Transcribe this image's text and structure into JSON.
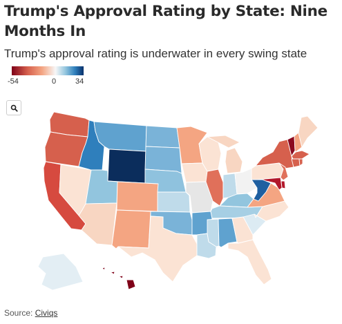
{
  "header": {
    "title": "Trump's Approval Rating by State: Nine Months In",
    "subtitle": "Trump's approval rating is underwater in every swing state"
  },
  "legend": {
    "min_label": "-54",
    "mid_label": "0",
    "max_label": "34",
    "min_color": "#7f0118",
    "mid_color": "#f7f7f7",
    "max_color": "#08306b"
  },
  "zoom": {
    "icon": "magnifier-icon"
  },
  "map": {
    "states": [
      {
        "abbr": "WA",
        "color": "#d6604d"
      },
      {
        "abbr": "OR",
        "color": "#d6604d"
      },
      {
        "abbr": "CA",
        "color": "#d64a3f"
      },
      {
        "abbr": "NV",
        "color": "#fbe3d4"
      },
      {
        "abbr": "ID",
        "color": "#2f7fbc"
      },
      {
        "abbr": "MT",
        "color": "#5fa2cf"
      },
      {
        "abbr": "WY",
        "color": "#0b2d5c"
      },
      {
        "abbr": "UT",
        "color": "#92c5de"
      },
      {
        "abbr": "AZ",
        "color": "#f8d6c2"
      },
      {
        "abbr": "CO",
        "color": "#f4a582"
      },
      {
        "abbr": "NM",
        "color": "#f4a582"
      },
      {
        "abbr": "ND",
        "color": "#7ab3d8"
      },
      {
        "abbr": "SD",
        "color": "#7ab3d8"
      },
      {
        "abbr": "NE",
        "color": "#8fc2de"
      },
      {
        "abbr": "KS",
        "color": "#bfdbea"
      },
      {
        "abbr": "OK",
        "color": "#7ab3d8"
      },
      {
        "abbr": "TX",
        "color": "#fbe3d4"
      },
      {
        "abbr": "MN",
        "color": "#f4a582"
      },
      {
        "abbr": "IA",
        "color": "#fbe3d4"
      },
      {
        "abbr": "MO",
        "color": "#e6e6e6"
      },
      {
        "abbr": "AR",
        "color": "#5fa2cf"
      },
      {
        "abbr": "LA",
        "color": "#bfdbea"
      },
      {
        "abbr": "WI",
        "color": "#fbe3d4"
      },
      {
        "abbr": "IL",
        "color": "#e0705a"
      },
      {
        "abbr": "MI",
        "color": "#f8d6c2"
      },
      {
        "abbr": "IN",
        "color": "#bfdbea"
      },
      {
        "abbr": "OH",
        "color": "#f2f2f2"
      },
      {
        "abbr": "KY",
        "color": "#92c5de"
      },
      {
        "abbr": "TN",
        "color": "#a6cfe4"
      },
      {
        "abbr": "MS",
        "color": "#bfdbea"
      },
      {
        "abbr": "AL",
        "color": "#5fa2cf"
      },
      {
        "abbr": "GA",
        "color": "#fbe3d4"
      },
      {
        "abbr": "FL",
        "color": "#fbe3d4"
      },
      {
        "abbr": "SC",
        "color": "#dcebf3"
      },
      {
        "abbr": "NC",
        "color": "#fbe3d4"
      },
      {
        "abbr": "VA",
        "color": "#f4a582"
      },
      {
        "abbr": "WV",
        "color": "#1f5fa0"
      },
      {
        "abbr": "PA",
        "color": "#fbe3d4"
      },
      {
        "abbr": "NY",
        "color": "#d6604d"
      },
      {
        "abbr": "VT",
        "color": "#8b0a1f"
      },
      {
        "abbr": "NH",
        "color": "#f4a582"
      },
      {
        "abbr": "ME",
        "color": "#f8d6c2"
      },
      {
        "abbr": "MA",
        "color": "#d6604d"
      },
      {
        "abbr": "CT",
        "color": "#d6604d"
      },
      {
        "abbr": "RI",
        "color": "#d6604d"
      },
      {
        "abbr": "NJ",
        "color": "#e0705a"
      },
      {
        "abbr": "DE",
        "color": "#b2182b"
      },
      {
        "abbr": "MD",
        "color": "#b2182b"
      },
      {
        "abbr": "AK",
        "color": "#e3eef4"
      },
      {
        "abbr": "HI",
        "color": "#7f0118"
      }
    ]
  },
  "footer": {
    "source_prefix": "Source: ",
    "source_link": "Civiqs"
  }
}
